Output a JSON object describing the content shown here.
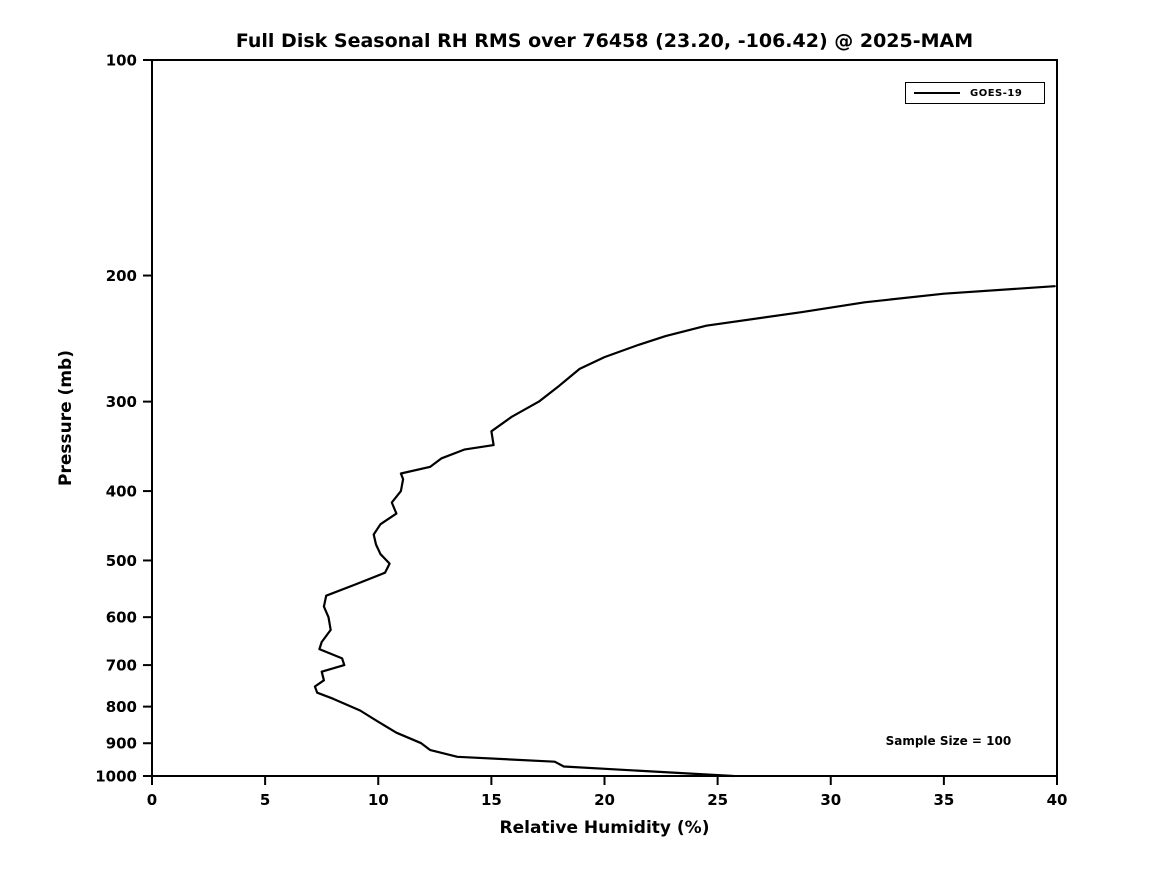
{
  "chart_data": {
    "type": "line",
    "title": "Full Disk Seasonal RH RMS over 76458 (23.20, -106.42) @ 2025-MAM",
    "xlabel": "Relative Humidity (%)",
    "ylabel": "Pressure (mb)",
    "xlim": [
      0,
      40
    ],
    "ylim_top": 100,
    "ylim_bottom": 1000,
    "yscale": "log",
    "y_inverted": true,
    "grid": false,
    "legend_position": "upper right",
    "xticks": [
      0,
      5,
      10,
      15,
      20,
      25,
      30,
      35,
      40
    ],
    "yticks": [
      100,
      200,
      300,
      400,
      500,
      600,
      700,
      800,
      900,
      1000
    ],
    "line_color": "#000000",
    "series": [
      {
        "name": "GOES-19",
        "color": "#000000",
        "x": [
          25.7,
          18.2,
          17.8,
          13.5,
          12.3,
          11.9,
          10.8,
          10.0,
          9.2,
          8.0,
          7.3,
          7.2,
          7.6,
          7.5,
          8.5,
          8.4,
          7.4,
          7.5,
          7.9,
          7.8,
          7.6,
          7.7,
          9.0,
          10.3,
          10.5,
          10.1,
          9.9,
          9.8,
          10.1,
          10.8,
          10.6,
          11.0,
          11.1,
          11.0,
          12.3,
          12.8,
          13.8,
          15.1,
          15.0,
          15.9,
          17.1,
          18.0,
          18.9,
          20.0,
          21.5,
          22.7,
          24.5,
          28.7,
          31.5,
          35.0,
          39.9
        ],
        "y": [
          1000,
          970,
          955,
          940,
          920,
          900,
          870,
          840,
          810,
          780,
          765,
          750,
          735,
          715,
          700,
          685,
          665,
          650,
          625,
          600,
          580,
          560,
          540,
          520,
          505,
          490,
          475,
          460,
          445,
          430,
          415,
          400,
          385,
          378,
          370,
          360,
          350,
          345,
          330,
          315,
          300,
          285,
          270,
          260,
          250,
          243,
          235,
          225,
          218,
          212,
          207
        ]
      }
    ],
    "annotations": [
      {
        "text": "Sample Size = 100",
        "x": 35.2,
        "y": 905
      }
    ]
  }
}
